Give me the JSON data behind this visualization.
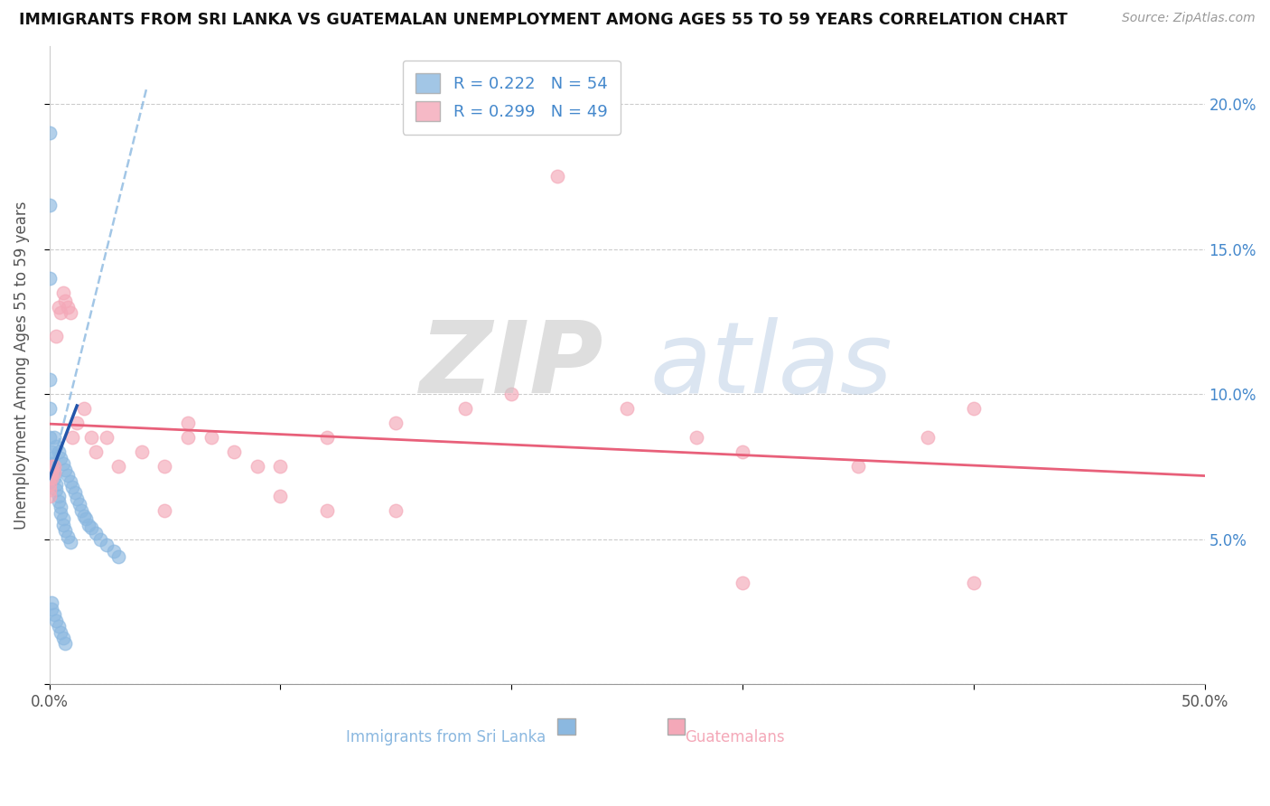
{
  "title": "IMMIGRANTS FROM SRI LANKA VS GUATEMALAN UNEMPLOYMENT AMONG AGES 55 TO 59 YEARS CORRELATION CHART",
  "source": "Source: ZipAtlas.com",
  "ylabel": "Unemployment Among Ages 55 to 59 years",
  "xlabel_sri_lanka": "Immigrants from Sri Lanka",
  "xlabel_guatemalans": "Guatemalans",
  "legend_sri_lanka": {
    "R": "0.222",
    "N": "54"
  },
  "legend_guatemalans": {
    "R": "0.299",
    "N": "49"
  },
  "xlim": [
    0.0,
    0.5
  ],
  "ylim": [
    0.0,
    0.22
  ],
  "x_ticks": [
    0.0,
    0.1,
    0.2,
    0.3,
    0.4,
    0.5
  ],
  "y_ticks": [
    0.0,
    0.05,
    0.1,
    0.15,
    0.2
  ],
  "x_tick_labels_bottom": [
    "0.0%",
    "",
    "",
    "",
    "",
    "50.0%"
  ],
  "y_tick_labels_left": [
    "",
    "",
    "",
    "",
    ""
  ],
  "y_tick_labels_right": [
    "",
    "5.0%",
    "10.0%",
    "15.0%",
    "20.0%"
  ],
  "color_sri_lanka": "#8BB8E0",
  "color_guatemalans": "#F4A8B8",
  "line_color_sri_lanka_solid": "#2255AA",
  "line_color_sri_lanka_dashed": "#8BB8E0",
  "line_color_guatemalans": "#E8607A",
  "watermark_zip": "ZIP",
  "watermark_atlas": "atlas",
  "sri_lanka_x": [
    0.002,
    0.003,
    0.004,
    0.005,
    0.006,
    0.007,
    0.008,
    0.009,
    0.01,
    0.011,
    0.012,
    0.013,
    0.014,
    0.015,
    0.016,
    0.017,
    0.018,
    0.02,
    0.022,
    0.025,
    0.028,
    0.03,
    0.0,
    0.0,
    0.0,
    0.0,
    0.0,
    0.0,
    0.0,
    0.0,
    0.001,
    0.001,
    0.001,
    0.002,
    0.002,
    0.003,
    0.003,
    0.004,
    0.004,
    0.005,
    0.005,
    0.006,
    0.006,
    0.007,
    0.008,
    0.009,
    0.001,
    0.001,
    0.002,
    0.003,
    0.004,
    0.005,
    0.006,
    0.007
  ],
  "sri_lanka_y": [
    0.085,
    0.082,
    0.08,
    0.078,
    0.076,
    0.074,
    0.072,
    0.07,
    0.068,
    0.066,
    0.064,
    0.062,
    0.06,
    0.058,
    0.057,
    0.055,
    0.054,
    0.052,
    0.05,
    0.048,
    0.046,
    0.044,
    0.19,
    0.165,
    0.14,
    0.105,
    0.095,
    0.085,
    0.075,
    0.07,
    0.08,
    0.078,
    0.076,
    0.073,
    0.071,
    0.069,
    0.067,
    0.065,
    0.063,
    0.061,
    0.059,
    0.057,
    0.055,
    0.053,
    0.051,
    0.049,
    0.028,
    0.026,
    0.024,
    0.022,
    0.02,
    0.018,
    0.016,
    0.014
  ],
  "guatemalans_x": [
    0.0,
    0.0,
    0.0,
    0.0,
    0.0,
    0.001,
    0.001,
    0.001,
    0.002,
    0.002,
    0.003,
    0.004,
    0.005,
    0.006,
    0.007,
    0.008,
    0.009,
    0.01,
    0.012,
    0.015,
    0.018,
    0.02,
    0.025,
    0.03,
    0.04,
    0.05,
    0.06,
    0.07,
    0.08,
    0.09,
    0.1,
    0.12,
    0.15,
    0.18,
    0.2,
    0.25,
    0.28,
    0.3,
    0.35,
    0.38,
    0.4,
    0.05,
    0.06,
    0.1,
    0.12,
    0.15,
    0.22,
    0.3,
    0.4
  ],
  "guatemalans_y": [
    0.073,
    0.071,
    0.069,
    0.067,
    0.065,
    0.075,
    0.073,
    0.071,
    0.075,
    0.073,
    0.12,
    0.13,
    0.128,
    0.135,
    0.132,
    0.13,
    0.128,
    0.085,
    0.09,
    0.095,
    0.085,
    0.08,
    0.085,
    0.075,
    0.08,
    0.075,
    0.085,
    0.085,
    0.08,
    0.075,
    0.065,
    0.085,
    0.09,
    0.095,
    0.1,
    0.095,
    0.085,
    0.08,
    0.075,
    0.085,
    0.095,
    0.06,
    0.09,
    0.075,
    0.06,
    0.06,
    0.175,
    0.035,
    0.035
  ]
}
